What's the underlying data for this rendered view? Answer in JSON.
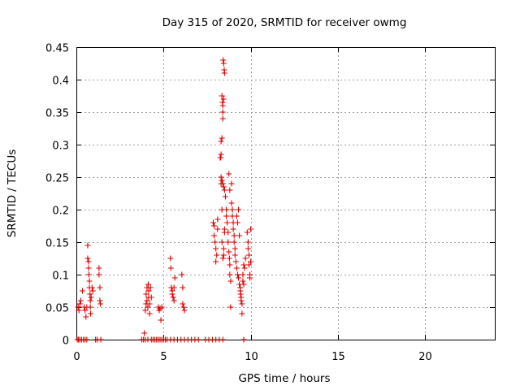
{
  "chart_data": {
    "type": "scatter",
    "title": "Day 315 of 2020, SRMTID for receiver owmg",
    "xlabel": "GPS time / hours",
    "ylabel": "SRMTID / TECUs",
    "xlim": [
      0,
      24
    ],
    "ylim": [
      0,
      0.45
    ],
    "xticks": [
      0,
      5,
      10,
      15,
      20
    ],
    "xtick_labels": [
      "0",
      "5",
      "10",
      "15",
      "20"
    ],
    "yticks": [
      0,
      0.05,
      0.1,
      0.15,
      0.2,
      0.25,
      0.3,
      0.35,
      0.4,
      0.45
    ],
    "ytick_labels": [
      "0",
      "0.05",
      "0.1",
      "0.15",
      "0.2",
      "0.25",
      "0.3",
      "0.35",
      "0.4",
      "0.45"
    ],
    "grid": true,
    "marker": "+",
    "color": "#dd0000",
    "series": [
      {
        "name": "SRMTID",
        "points": [
          [
            0.05,
            0
          ],
          [
            0.12,
            0
          ],
          [
            0.2,
            0
          ],
          [
            0.3,
            0
          ],
          [
            0.4,
            0
          ],
          [
            0.5,
            0
          ],
          [
            0.6,
            0
          ],
          [
            1.1,
            0
          ],
          [
            1.2,
            0
          ],
          [
            1.4,
            0
          ],
          [
            3.75,
            0
          ],
          [
            3.85,
            0
          ],
          [
            3.95,
            0
          ],
          [
            4.1,
            0
          ],
          [
            4.3,
            0
          ],
          [
            4.4,
            0
          ],
          [
            4.5,
            0
          ],
          [
            4.6,
            0
          ],
          [
            4.7,
            0
          ],
          [
            4.8,
            0
          ],
          [
            4.9,
            0
          ],
          [
            5.0,
            0
          ],
          [
            5.1,
            0
          ],
          [
            5.2,
            0
          ],
          [
            5.4,
            0
          ],
          [
            5.6,
            0
          ],
          [
            5.8,
            0
          ],
          [
            6.0,
            0
          ],
          [
            6.2,
            0
          ],
          [
            6.4,
            0
          ],
          [
            6.6,
            0
          ],
          [
            6.8,
            0
          ],
          [
            7.0,
            0
          ],
          [
            7.4,
            0
          ],
          [
            7.6,
            0
          ],
          [
            7.8,
            0
          ],
          [
            8.0,
            0
          ],
          [
            8.2,
            0
          ],
          [
            8.4,
            0
          ],
          [
            9.6,
            0
          ],
          [
            0.1,
            0.05
          ],
          [
            0.15,
            0.045
          ],
          [
            0.2,
            0.055
          ],
          [
            0.25,
            0.06
          ],
          [
            0.35,
            0.075
          ],
          [
            0.45,
            0.05
          ],
          [
            0.5,
            0.045
          ],
          [
            0.55,
            0.035
          ],
          [
            0.6,
            0.05
          ],
          [
            0.65,
            0.145
          ],
          [
            0.65,
            0.125
          ],
          [
            0.7,
            0.12
          ],
          [
            0.7,
            0.11
          ],
          [
            0.72,
            0.1
          ],
          [
            0.75,
            0.09
          ],
          [
            0.75,
            0.08
          ],
          [
            0.78,
            0.07
          ],
          [
            0.8,
            0.06
          ],
          [
            0.8,
            0.05
          ],
          [
            0.82,
            0.04
          ],
          [
            0.85,
            0.065
          ],
          [
            0.9,
            0.08
          ],
          [
            0.95,
            0.075
          ],
          [
            1.3,
            0.11
          ],
          [
            1.3,
            0.1
          ],
          [
            1.35,
            0.08
          ],
          [
            1.35,
            0.06
          ],
          [
            1.38,
            0.055
          ],
          [
            3.9,
            0.01
          ],
          [
            3.95,
            0.045
          ],
          [
            4.0,
            0.055
          ],
          [
            4.0,
            0.07
          ],
          [
            4.05,
            0.08
          ],
          [
            4.05,
            0.06
          ],
          [
            4.1,
            0.05
          ],
          [
            4.12,
            0.085
          ],
          [
            4.15,
            0.075
          ],
          [
            4.15,
            0.065
          ],
          [
            4.2,
            0.055
          ],
          [
            4.2,
            0.04
          ],
          [
            4.25,
            0.08
          ],
          [
            4.3,
            0.065
          ],
          [
            4.7,
            0.05
          ],
          [
            4.75,
            0.045
          ],
          [
            4.8,
            0.048
          ],
          [
            4.85,
            0.03
          ],
          [
            4.9,
            0.05
          ],
          [
            5.4,
            0.125
          ],
          [
            5.42,
            0.11
          ],
          [
            5.45,
            0.08
          ],
          [
            5.5,
            0.075
          ],
          [
            5.5,
            0.07
          ],
          [
            5.55,
            0.065
          ],
          [
            5.6,
            0.06
          ],
          [
            5.6,
            0.08
          ],
          [
            5.65,
            0.095
          ],
          [
            6.05,
            0.1
          ],
          [
            6.1,
            0.08
          ],
          [
            6.1,
            0.055
          ],
          [
            6.15,
            0.05
          ],
          [
            6.2,
            0.045
          ],
          [
            7.85,
            0.18
          ],
          [
            7.9,
            0.175
          ],
          [
            7.9,
            0.16
          ],
          [
            7.95,
            0.15
          ],
          [
            8.0,
            0.14
          ],
          [
            8.0,
            0.12
          ],
          [
            8.05,
            0.13
          ],
          [
            8.1,
            0.17
          ],
          [
            8.1,
            0.185
          ],
          [
            8.25,
            0.28
          ],
          [
            8.3,
            0.25
          ],
          [
            8.3,
            0.24
          ],
          [
            8.35,
            0.2
          ],
          [
            8.35,
            0.15
          ],
          [
            8.4,
            0.125
          ],
          [
            8.45,
            0.14
          ],
          [
            8.45,
            0.13
          ],
          [
            8.5,
            0.165
          ],
          [
            8.5,
            0.17
          ],
          [
            8.42,
            0.43
          ],
          [
            8.45,
            0.425
          ],
          [
            8.48,
            0.415
          ],
          [
            8.5,
            0.41
          ],
          [
            8.35,
            0.375
          ],
          [
            8.38,
            0.365
          ],
          [
            8.4,
            0.36
          ],
          [
            8.45,
            0.37
          ],
          [
            8.4,
            0.35
          ],
          [
            8.4,
            0.34
          ],
          [
            8.35,
            0.31
          ],
          [
            8.3,
            0.305
          ],
          [
            8.3,
            0.285
          ],
          [
            8.28,
            0.28
          ],
          [
            8.35,
            0.245
          ],
          [
            8.4,
            0.24
          ],
          [
            8.45,
            0.235
          ],
          [
            8.5,
            0.23
          ],
          [
            8.55,
            0.22
          ],
          [
            8.6,
            0.2
          ],
          [
            8.6,
            0.19
          ],
          [
            8.65,
            0.18
          ],
          [
            8.7,
            0.165
          ],
          [
            8.7,
            0.15
          ],
          [
            8.75,
            0.135
          ],
          [
            8.78,
            0.125
          ],
          [
            8.8,
            0.115
          ],
          [
            8.8,
            0.1
          ],
          [
            8.85,
            0.09
          ],
          [
            8.85,
            0.05
          ],
          [
            8.75,
            0.255
          ],
          [
            8.8,
            0.23
          ],
          [
            8.9,
            0.24
          ],
          [
            8.9,
            0.21
          ],
          [
            8.95,
            0.2
          ],
          [
            8.95,
            0.19
          ],
          [
            9.0,
            0.18
          ],
          [
            9.0,
            0.17
          ],
          [
            9.05,
            0.16
          ],
          [
            9.05,
            0.15
          ],
          [
            9.1,
            0.14
          ],
          [
            9.1,
            0.13
          ],
          [
            9.15,
            0.12
          ],
          [
            9.2,
            0.11
          ],
          [
            9.2,
            0.19
          ],
          [
            9.25,
            0.18
          ],
          [
            9.25,
            0.1
          ],
          [
            9.3,
            0.095
          ],
          [
            9.3,
            0.2
          ],
          [
            9.35,
            0.16
          ],
          [
            9.35,
            0.085
          ],
          [
            9.4,
            0.08
          ],
          [
            9.4,
            0.075
          ],
          [
            9.42,
            0.07
          ],
          [
            9.45,
            0.065
          ],
          [
            9.45,
            0.06
          ],
          [
            9.5,
            0.055
          ],
          [
            9.5,
            0.04
          ],
          [
            9.55,
            0.09
          ],
          [
            9.55,
            0.1
          ],
          [
            9.6,
            0.085
          ],
          [
            9.6,
            0.115
          ],
          [
            9.65,
            0.11
          ],
          [
            9.7,
            0.125
          ],
          [
            9.8,
            0.165
          ],
          [
            9.85,
            0.15
          ],
          [
            9.85,
            0.14
          ],
          [
            9.9,
            0.13
          ],
          [
            9.9,
            0.115
          ],
          [
            9.95,
            0.1
          ],
          [
            9.95,
            0.095
          ],
          [
            10.0,
            0.17
          ],
          [
            10.0,
            0.12
          ]
        ]
      }
    ]
  }
}
